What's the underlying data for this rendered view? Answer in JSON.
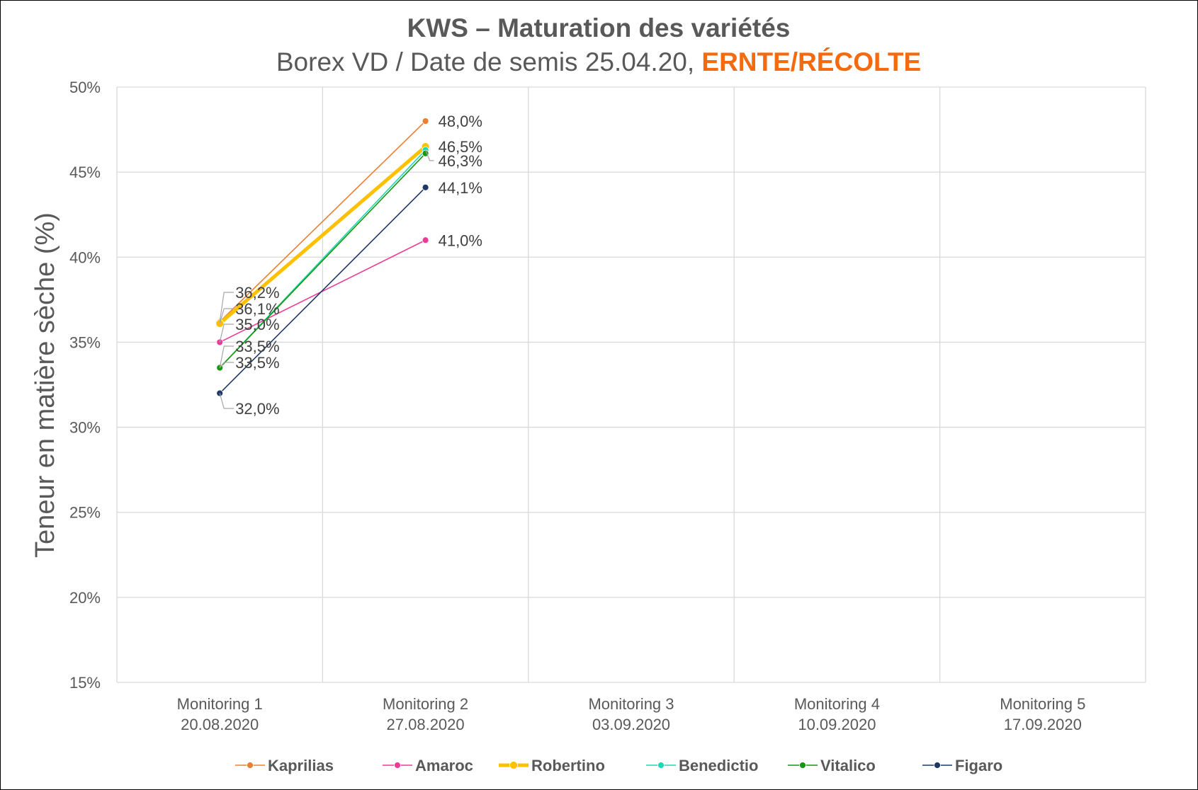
{
  "chart_data": {
    "type": "line",
    "title": "KWS – Maturation des variétés",
    "subtitle": "Borex VD / Date de semis 25.04.20,",
    "subtitle_accent": "ERNTE/RÉCOLTE",
    "subtitle_accent_color": "#f46a0f",
    "ylabel": "Teneur en matière sèche (%)",
    "xlabel": "",
    "ylim": [
      15,
      50
    ],
    "yticks": [
      "15%",
      "20%",
      "25%",
      "30%",
      "35%",
      "40%",
      "45%",
      "50%"
    ],
    "categories": [
      [
        "Monitoring 1",
        "20.08.2020"
      ],
      [
        "Monitoring 2",
        "27.08.2020"
      ],
      [
        "Monitoring 3",
        "03.09.2020"
      ],
      [
        "Monitoring 4",
        "10.09.2020"
      ],
      [
        "Monitoring 5",
        "17.09.2020"
      ]
    ],
    "grid": true,
    "legend": "bottom",
    "series": [
      {
        "name": "Kaprilias",
        "color": "#ed7d31",
        "values": [
          36.2,
          48.0,
          null,
          null,
          null
        ],
        "labels": [
          "36,2%",
          "48,0%"
        ]
      },
      {
        "name": "Amaroc",
        "color": "#ec3c98",
        "values": [
          35.0,
          41.0,
          null,
          null,
          null
        ],
        "labels": [
          "35,0%",
          "41,0%"
        ]
      },
      {
        "name": "Robertino",
        "color": "#ffc000",
        "values": [
          36.1,
          46.5,
          null,
          null,
          null
        ],
        "labels": [
          "36,1%",
          "46,5%"
        ],
        "bold": true
      },
      {
        "name": "Benedictio",
        "color": "#21d7b5",
        "values": [
          33.5,
          46.3,
          null,
          null,
          null
        ],
        "labels": [
          "33,5%",
          "46,3%"
        ]
      },
      {
        "name": "Vitalico",
        "color": "#15970f",
        "values": [
          33.5,
          46.1,
          null,
          null,
          null
        ],
        "labels": [
          "33,5%",
          ""
        ]
      },
      {
        "name": "Figaro",
        "color": "#1f3864",
        "values": [
          32.0,
          44.1,
          null,
          null,
          null
        ],
        "labels": [
          "32,0%",
          "44,1%"
        ]
      }
    ]
  }
}
